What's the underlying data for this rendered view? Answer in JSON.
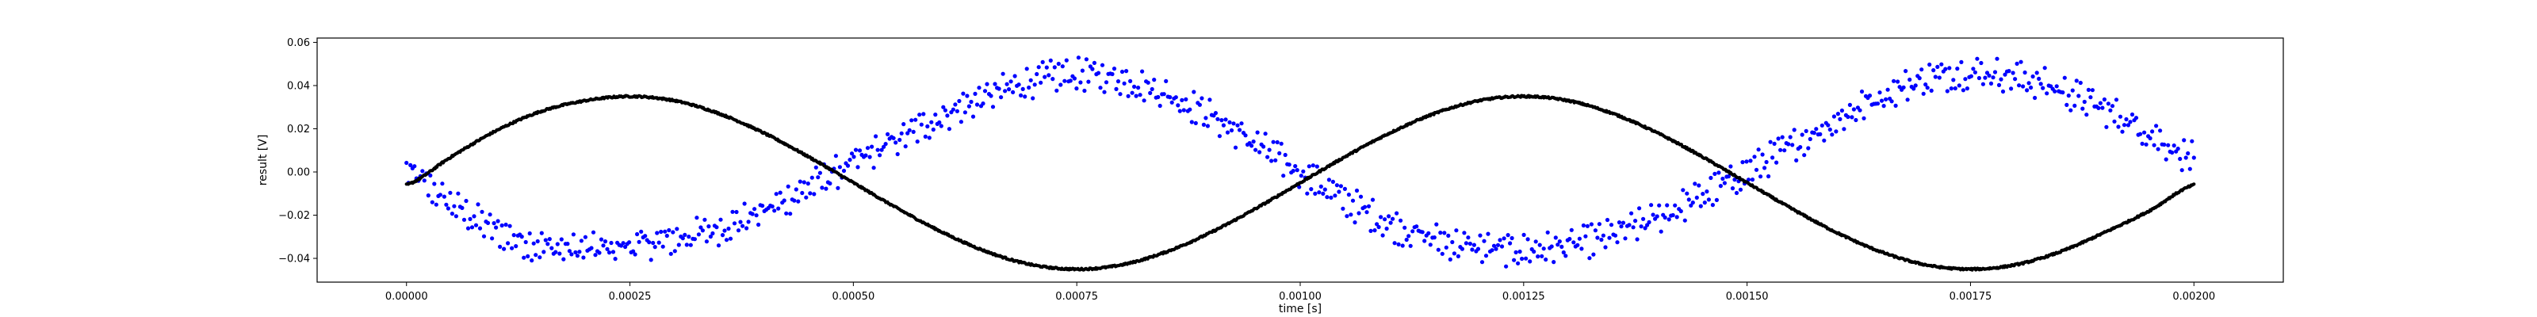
{
  "chart_data": {
    "type": "scatter",
    "title": "",
    "xlabel": "time [s]",
    "ylabel": "result [V]",
    "xlim": [
      -0.0001,
      0.0021
    ],
    "ylim": [
      -0.051,
      0.062
    ],
    "x_ticks": [
      0.0,
      0.00025,
      0.0005,
      0.00075,
      0.001,
      0.00125,
      0.0015,
      0.00175,
      0.002
    ],
    "x_tick_labels": [
      "0.00000",
      "0.00025",
      "0.00050",
      "0.00075",
      "0.00100",
      "0.00125",
      "0.00150",
      "0.00175",
      "0.00200"
    ],
    "y_ticks": [
      -0.04,
      -0.02,
      0.0,
      0.02,
      0.04,
      0.06
    ],
    "y_tick_labels": [
      "−0.04",
      "−0.02",
      "0.00",
      "0.02",
      "0.04",
      "0.06"
    ],
    "grid": false,
    "legend": "none",
    "series": [
      {
        "color": "#0000ff",
        "x": [
          0.0,
          5e-05,
          0.0001,
          0.00015,
          0.0002,
          0.00025,
          0.0003,
          0.00035,
          0.0004,
          0.00045,
          0.0005,
          0.00055,
          0.0006,
          0.00065,
          0.0007,
          0.00075,
          0.0008,
          0.00085,
          0.0009,
          0.00095,
          0.001,
          0.00105,
          0.0011,
          0.00115,
          0.0012,
          0.00125,
          0.0013,
          0.00135,
          0.0014,
          0.00145,
          0.0015,
          0.00155,
          0.0016,
          0.00165,
          0.0017,
          0.00175,
          0.0018,
          0.00185,
          0.0019,
          0.00195,
          0.002
        ],
        "y": [
          0.0,
          -0.015,
          -0.027,
          -0.034,
          -0.036,
          -0.034,
          -0.031,
          -0.026,
          -0.018,
          -0.007,
          0.004,
          0.015,
          0.026,
          0.035,
          0.042,
          0.045,
          0.043,
          0.036,
          0.026,
          0.013,
          0.0,
          -0.013,
          -0.024,
          -0.031,
          -0.035,
          -0.036,
          -0.034,
          -0.029,
          -0.021,
          -0.011,
          0.0,
          0.012,
          0.024,
          0.035,
          0.043,
          0.046,
          0.044,
          0.038,
          0.029,
          0.018,
          0.006
        ]
      },
      {
        "color": "#000000",
        "x": [
          0.0,
          5e-05,
          0.0001,
          0.00015,
          0.0002,
          0.00025,
          0.0003,
          0.00035,
          0.0004,
          0.00045,
          0.0005,
          0.00055,
          0.0006,
          0.00065,
          0.0007,
          0.00075,
          0.0008,
          0.00085,
          0.0009,
          0.00095,
          0.001,
          0.00105,
          0.0011,
          0.00115,
          0.0012,
          0.00125,
          0.0013,
          0.00135,
          0.0014,
          0.00145,
          0.0015,
          0.00155,
          0.0016,
          0.00165,
          0.0017,
          0.00175,
          0.0018,
          0.00185,
          0.0019,
          0.00195,
          0.002
        ],
        "y": [
          -0.006,
          0.007,
          0.019,
          0.028,
          0.033,
          0.035,
          0.033,
          0.027,
          0.018,
          0.007,
          -0.005,
          -0.017,
          -0.028,
          -0.037,
          -0.043,
          -0.045,
          -0.043,
          -0.037,
          -0.028,
          -0.017,
          -0.005,
          0.007,
          0.018,
          0.027,
          0.033,
          0.035,
          0.033,
          0.027,
          0.018,
          0.007,
          -0.005,
          -0.017,
          -0.028,
          -0.037,
          -0.043,
          -0.045,
          -0.043,
          -0.037,
          -0.028,
          -0.018,
          -0.006
        ]
      }
    ]
  }
}
